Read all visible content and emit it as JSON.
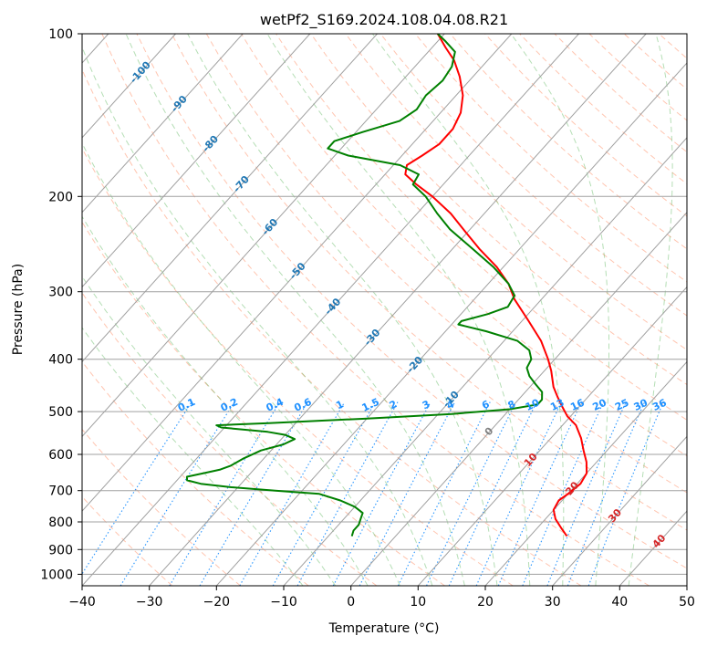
{
  "chart_data": {
    "type": "line",
    "chart_kind": "skew-T log-P diagram",
    "title": "wetPf2_S169.2024.108.04.08.R21",
    "xlabel": "Temperature (°C)",
    "ylabel": "Pressure (hPa)",
    "xlim": [
      -40,
      50
    ],
    "ylim": [
      1050,
      100
    ],
    "y_scale": "log",
    "grid": true,
    "x_ticks": [
      -40,
      -30,
      -20,
      -10,
      0,
      10,
      20,
      30,
      40,
      50
    ],
    "y_ticks": [
      100,
      200,
      300,
      400,
      500,
      600,
      700,
      800,
      900,
      1000
    ],
    "series": [
      {
        "role": "temperature",
        "color": "#ff0000",
        "points": [
          {
            "p": 850,
            "t": 25.5
          },
          {
            "p": 820,
            "t": 23.5
          },
          {
            "p": 790,
            "t": 21.5
          },
          {
            "p": 760,
            "t": 20.0
          },
          {
            "p": 730,
            "t": 19.5
          },
          {
            "p": 710,
            "t": 20.0
          },
          {
            "p": 680,
            "t": 20.5
          },
          {
            "p": 650,
            "t": 20.0
          },
          {
            "p": 620,
            "t": 18.5
          },
          {
            "p": 590,
            "t": 16.5
          },
          {
            "p": 560,
            "t": 14.5
          },
          {
            "p": 530,
            "t": 12.0
          },
          {
            "p": 510,
            "t": 9.5
          },
          {
            "p": 490,
            "t": 7.5
          },
          {
            "p": 470,
            "t": 5.5
          },
          {
            "p": 450,
            "t": 3.5
          },
          {
            "p": 420,
            "t": 1.0
          },
          {
            "p": 400,
            "t": -1.0
          },
          {
            "p": 370,
            "t": -4.5
          },
          {
            "p": 340,
            "t": -9.0
          },
          {
            "p": 310,
            "t": -14.0
          },
          {
            "p": 290,
            "t": -17.0
          },
          {
            "p": 270,
            "t": -21.0
          },
          {
            "p": 250,
            "t": -26.0
          },
          {
            "p": 230,
            "t": -31.0
          },
          {
            "p": 215,
            "t": -35.0
          },
          {
            "p": 200,
            "t": -40.0
          },
          {
            "p": 190,
            "t": -44.0
          },
          {
            "p": 182,
            "t": -47.0
          },
          {
            "p": 175,
            "t": -48.0
          },
          {
            "p": 168,
            "t": -47.0
          },
          {
            "p": 160,
            "t": -46.0
          },
          {
            "p": 150,
            "t": -46.0
          },
          {
            "p": 140,
            "t": -47.0
          },
          {
            "p": 130,
            "t": -49.0
          },
          {
            "p": 120,
            "t": -52.0
          },
          {
            "p": 112,
            "t": -55.0
          },
          {
            "p": 106,
            "t": -58.0
          },
          {
            "p": 100,
            "t": -61.0
          }
        ]
      },
      {
        "role": "dewpoint",
        "color": "#008000",
        "points": [
          {
            "p": 850,
            "t": -6.5
          },
          {
            "p": 830,
            "t": -7.0
          },
          {
            "p": 810,
            "t": -7.0
          },
          {
            "p": 790,
            "t": -7.5
          },
          {
            "p": 770,
            "t": -8.0
          },
          {
            "p": 750,
            "t": -10.0
          },
          {
            "p": 730,
            "t": -13.0
          },
          {
            "p": 710,
            "t": -17.0
          },
          {
            "p": 700,
            "t": -24.0
          },
          {
            "p": 690,
            "t": -31.0
          },
          {
            "p": 680,
            "t": -36.0
          },
          {
            "p": 670,
            "t": -38.5
          },
          {
            "p": 660,
            "t": -39.0
          },
          {
            "p": 650,
            "t": -37.0
          },
          {
            "p": 640,
            "t": -35.0
          },
          {
            "p": 630,
            "t": -34.0
          },
          {
            "p": 610,
            "t": -33.0
          },
          {
            "p": 590,
            "t": -31.5
          },
          {
            "p": 575,
            "t": -29.0
          },
          {
            "p": 562,
            "t": -28.0
          },
          {
            "p": 552,
            "t": -30.0
          },
          {
            "p": 545,
            "t": -33.0
          },
          {
            "p": 535,
            "t": -40.5
          },
          {
            "p": 530,
            "t": -41.5
          },
          {
            "p": 525,
            "t": -34.0
          },
          {
            "p": 515,
            "t": -20.0
          },
          {
            "p": 505,
            "t": -8.0
          },
          {
            "p": 495,
            "t": 0.0
          },
          {
            "p": 485,
            "t": 3.5
          },
          {
            "p": 475,
            "t": 3.5
          },
          {
            "p": 460,
            "t": 2.5
          },
          {
            "p": 445,
            "t": 0.5
          },
          {
            "p": 430,
            "t": -1.5
          },
          {
            "p": 415,
            "t": -3.0
          },
          {
            "p": 400,
            "t": -3.5
          },
          {
            "p": 385,
            "t": -5.0
          },
          {
            "p": 370,
            "t": -8.0
          },
          {
            "p": 355,
            "t": -14.0
          },
          {
            "p": 345,
            "t": -19.0
          },
          {
            "p": 340,
            "t": -19.0
          },
          {
            "p": 330,
            "t": -16.0
          },
          {
            "p": 320,
            "t": -14.0
          },
          {
            "p": 305,
            "t": -14.5
          },
          {
            "p": 290,
            "t": -17.0
          },
          {
            "p": 270,
            "t": -21.5
          },
          {
            "p": 250,
            "t": -27.0
          },
          {
            "p": 230,
            "t": -33.0
          },
          {
            "p": 215,
            "t": -37.0
          },
          {
            "p": 200,
            "t": -41.0
          },
          {
            "p": 190,
            "t": -44.5
          },
          {
            "p": 182,
            "t": -45.0
          },
          {
            "p": 175,
            "t": -49.0
          },
          {
            "p": 168,
            "t": -58.0
          },
          {
            "p": 163,
            "t": -62.0
          },
          {
            "p": 158,
            "t": -62.0
          },
          {
            "p": 152,
            "t": -59.0
          },
          {
            "p": 145,
            "t": -55.0
          },
          {
            "p": 138,
            "t": -54.0
          },
          {
            "p": 130,
            "t": -54.5
          },
          {
            "p": 122,
            "t": -54.0
          },
          {
            "p": 115,
            "t": -54.5
          },
          {
            "p": 108,
            "t": -56.0
          },
          {
            "p": 103,
            "t": -59.0
          },
          {
            "p": 100,
            "t": -61.0
          }
        ]
      }
    ],
    "isotherm_labels": [
      {
        "t": -100,
        "p": 118,
        "text": "-100"
      },
      {
        "t": -90,
        "p": 135,
        "text": "-90"
      },
      {
        "t": -80,
        "p": 160,
        "text": "-80"
      },
      {
        "t": -70,
        "p": 190,
        "text": "-70"
      },
      {
        "t": -60,
        "p": 228,
        "text": "-60"
      },
      {
        "t": -50,
        "p": 275,
        "text": "-50"
      },
      {
        "t": -40,
        "p": 320,
        "text": "-40"
      },
      {
        "t": -30,
        "p": 365,
        "text": "-30"
      },
      {
        "t": -20,
        "p": 410,
        "text": "-20"
      },
      {
        "t": -10,
        "p": 475,
        "text": "-10"
      },
      {
        "t": 0,
        "p": 545,
        "text": "0"
      },
      {
        "t": 10,
        "p": 615,
        "text": "10"
      },
      {
        "t": 20,
        "p": 695,
        "text": "20"
      },
      {
        "t": 30,
        "p": 780,
        "text": "30"
      },
      {
        "t": 40,
        "p": 870,
        "text": "40"
      }
    ],
    "mixing_ratio_labels": [
      "0.1",
      "0.2",
      "0.4",
      "0.6",
      "1",
      "1.5",
      "2",
      "3",
      "4",
      "6",
      "8",
      "10",
      "13",
      "16",
      "20",
      "25",
      "30",
      "36"
    ],
    "colors": {
      "temperature": "#ff0000",
      "dewpoint": "#008000",
      "isotherm_text": "#1f77b4",
      "mixing_ratio": "#1e90ff",
      "dry_adiabat": "#ff7f50",
      "moist_adiabat": "#2ca02c",
      "warm_isotherm_text": "#d62728"
    }
  }
}
